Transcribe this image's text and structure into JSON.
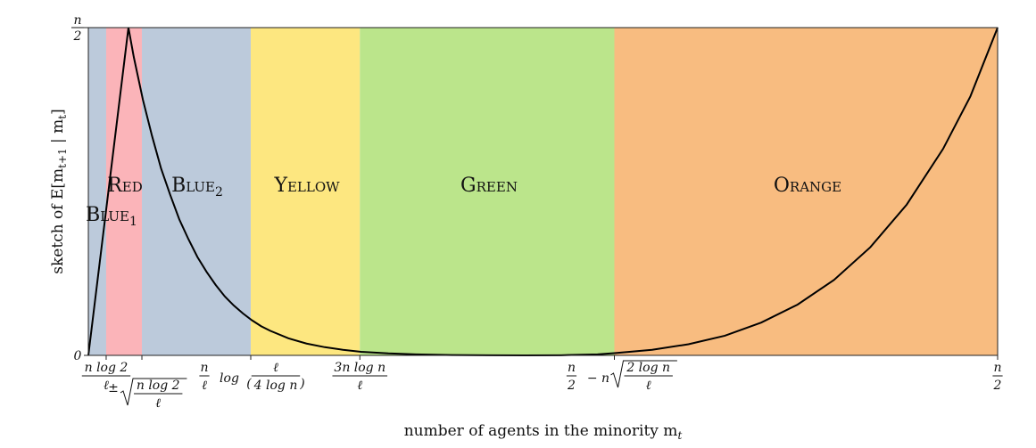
{
  "chart_data": {
    "type": "area",
    "xlabel": "number of agents in the minority m",
    "xlabel_sub": "t",
    "ylabel": "sketch of E[m",
    "ylabel_sub1": "t+1",
    "ylabel_mid": " | m",
    "ylabel_sub2": "t",
    "ylabel_end": "]",
    "y_ticks": [
      {
        "label": "0",
        "value": 0
      },
      {
        "label": "n/2",
        "value": 1
      }
    ],
    "x_range": [
      0,
      1
    ],
    "y_range": [
      0,
      1
    ],
    "grid": false,
    "regions": [
      {
        "name": "BLUE",
        "sub": "1",
        "x0": 0.0,
        "x1": 0.0196,
        "color": "#bccadb"
      },
      {
        "name": "RED",
        "sub": "",
        "x0": 0.0196,
        "x1": 0.0589,
        "color": "#fbb4b9"
      },
      {
        "name": "BLUE",
        "sub": "2",
        "x0": 0.0589,
        "x1": 0.1786,
        "color": "#bccadb"
      },
      {
        "name": "YELLOW",
        "sub": "",
        "x0": 0.1786,
        "x1": 0.2986,
        "color": "#fde780"
      },
      {
        "name": "GREEN",
        "sub": "",
        "x0": 0.2986,
        "x1": 0.5785,
        "color": "#bbe58b"
      },
      {
        "name": "ORANGE",
        "sub": "",
        "x0": 0.5785,
        "x1": 1.0,
        "color": "#f8bc80"
      }
    ],
    "x_ticks": [
      {
        "pos": 0.0196,
        "num": "n log 2",
        "den": "ℓ"
      },
      {
        "pos": 0.0589,
        "prefix": "±",
        "sqrt_num": "n log 2",
        "sqrt_den": "ℓ"
      },
      {
        "pos": 0.1786,
        "num": "n",
        "den": "ℓ",
        "mid": "log",
        "paren_num": "ℓ",
        "paren_den": "4 log n"
      },
      {
        "pos": 0.2986,
        "num": "3n log n",
        "den": "ℓ"
      },
      {
        "pos": 0.5785,
        "num": "n",
        "den": "2",
        "mid": "− n",
        "sqrt_num": "2 log n",
        "sqrt_den": "ℓ"
      },
      {
        "pos": 1.0,
        "num": "n",
        "den": "2"
      }
    ],
    "series": [
      {
        "x": [
          0,
          0.0441,
          0.05,
          0.06,
          0.07,
          0.08,
          0.09,
          0.1,
          0.11,
          0.12,
          0.13,
          0.14,
          0.15,
          0.16,
          0.17,
          0.18,
          0.19,
          0.2,
          0.22,
          0.24,
          0.26,
          0.28,
          0.3,
          0.33,
          0.36,
          0.4,
          0.44,
          0.48,
          0.52,
          0.56,
          0.58,
          0.62,
          0.66,
          0.7,
          0.74,
          0.78,
          0.82,
          0.86,
          0.9,
          0.94,
          0.97,
          1.0
        ],
        "y": [
          0,
          1.0,
          0.91,
          0.78,
          0.67,
          0.57,
          0.49,
          0.415,
          0.355,
          0.3,
          0.255,
          0.215,
          0.18,
          0.152,
          0.128,
          0.107,
          0.089,
          0.075,
          0.052,
          0.036,
          0.025,
          0.017,
          0.011,
          0.006,
          0.003,
          0.001,
          0.0003,
          0.0001,
          0.0005,
          0.003,
          0.007,
          0.017,
          0.034,
          0.06,
          0.1,
          0.155,
          0.23,
          0.33,
          0.46,
          0.63,
          0.79,
          1.0
        ]
      }
    ]
  }
}
